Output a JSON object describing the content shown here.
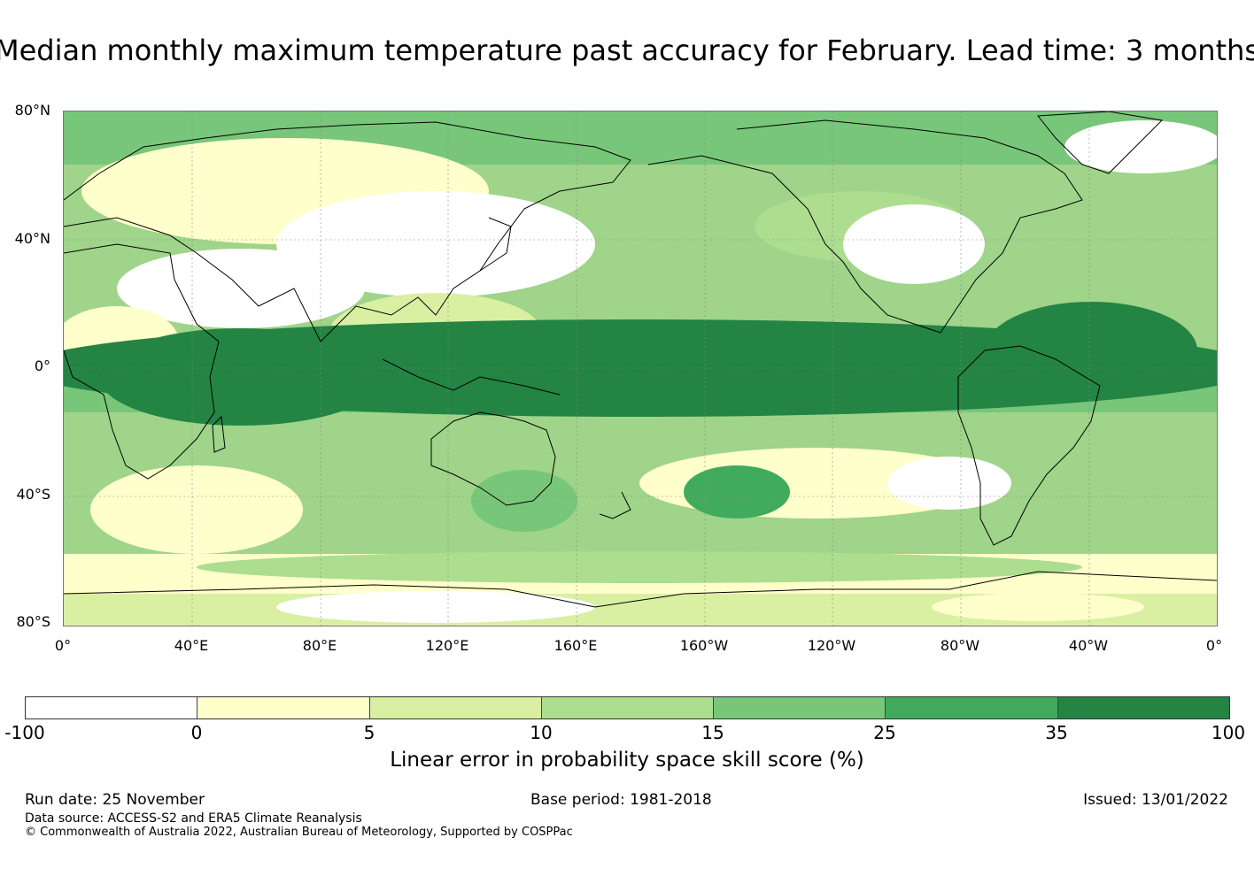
{
  "title": "Median monthly maximum temperature past accuracy for February. Lead time: 3 months",
  "map": {
    "lat_labels": [
      "80°N",
      "40°N",
      "0°",
      "40°S",
      "80°S"
    ],
    "lon_labels": [
      "0°",
      "40°E",
      "80°E",
      "120°E",
      "160°E",
      "160°W",
      "120°W",
      "80°W",
      "40°W",
      "0°"
    ],
    "ocean_skill_band": "tropical Pacific high skill"
  },
  "colorbar": {
    "ticks": [
      "-100",
      "0",
      "5",
      "10",
      "15",
      "25",
      "35",
      "100"
    ],
    "colors": [
      "#ffffff",
      "#ffffcc",
      "#d9f0a3",
      "#addd8e",
      "#78c679",
      "#41ab5d",
      "#238443"
    ],
    "label": "Linear error in probability space skill score (%)"
  },
  "footer": {
    "run_date": "Run date: 25 November",
    "base_period": "Base period: 1981-2018",
    "issued": "Issued: 13/01/2022",
    "data_source": "Data source: ACCESS-S2 and ERA5 Climate Reanalysis",
    "copyright": "© Commonwealth of Australia 2022, Australian Bureau of Meteorology, Supported by COSPPac"
  }
}
